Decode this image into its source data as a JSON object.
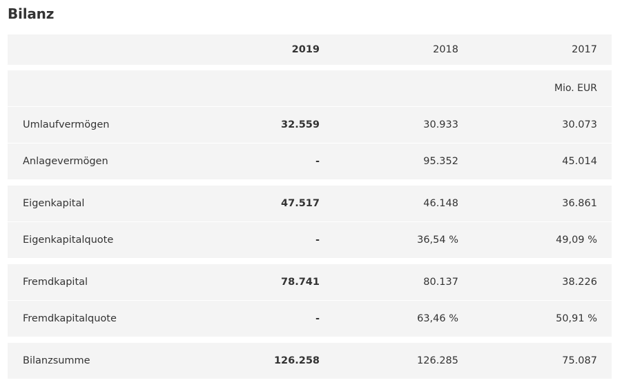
{
  "title": "Bilanz",
  "columns": [
    "",
    "2019",
    "2018",
    "2017"
  ],
  "unit": "Mio. EUR",
  "groups": [
    [
      {
        "label": "Umlaufvermögen",
        "v2019": "32.559",
        "v2018": "30.933",
        "v2017": "30.073"
      },
      {
        "label": "Anlagevermögen",
        "v2019": "-",
        "v2018": "95.352",
        "v2017": "45.014"
      }
    ],
    [
      {
        "label": "Eigenkapital",
        "v2019": "47.517",
        "v2018": "46.148",
        "v2017": "36.861"
      },
      {
        "label": "Eigenkapitalquote",
        "v2019": "-",
        "v2018": "36,54 %",
        "v2017": "49,09 %"
      }
    ],
    [
      {
        "label": "Fremdkapital",
        "v2019": "78.741",
        "v2018": "80.137",
        "v2017": "38.226"
      },
      {
        "label": "Fremdkapitalquote",
        "v2019": "-",
        "v2018": "63,46 %",
        "v2017": "50,91 %"
      }
    ],
    [
      {
        "label": "Bilanzsumme",
        "v2019": "126.258",
        "v2018": "126.285",
        "v2017": "75.087"
      }
    ]
  ]
}
